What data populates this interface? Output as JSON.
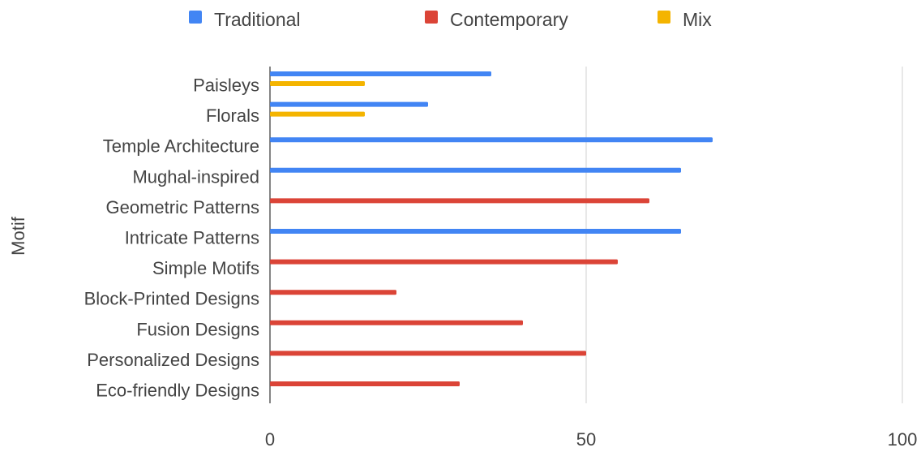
{
  "chart_data": {
    "type": "bar",
    "orientation": "horizontal",
    "ylabel": "Motif",
    "categories": [
      "Paisleys",
      "Florals",
      "Temple Architecture",
      "Mughal-inspired",
      "Geometric Patterns",
      "Intricate Patterns",
      "Simple Motifs",
      "Block-Printed Designs",
      "Fusion Designs",
      "Personalized Designs",
      "Eco-friendly Designs"
    ],
    "series": [
      {
        "name": "Traditional",
        "color": "#4285F4",
        "values": [
          35,
          25,
          70,
          65,
          0,
          65,
          0,
          0,
          0,
          0,
          0
        ]
      },
      {
        "name": "Contemporary",
        "color": "#DB4437",
        "values": [
          0,
          0,
          0,
          0,
          60,
          0,
          55,
          20,
          40,
          50,
          30
        ]
      },
      {
        "name": "Mix",
        "color": "#F4B400",
        "values": [
          15,
          15,
          0,
          0,
          0,
          0,
          0,
          0,
          0,
          0,
          0
        ]
      }
    ],
    "xlim": [
      0,
      100
    ],
    "xticks": [
      0,
      50,
      100
    ],
    "grid": true,
    "legend_position": "top"
  }
}
